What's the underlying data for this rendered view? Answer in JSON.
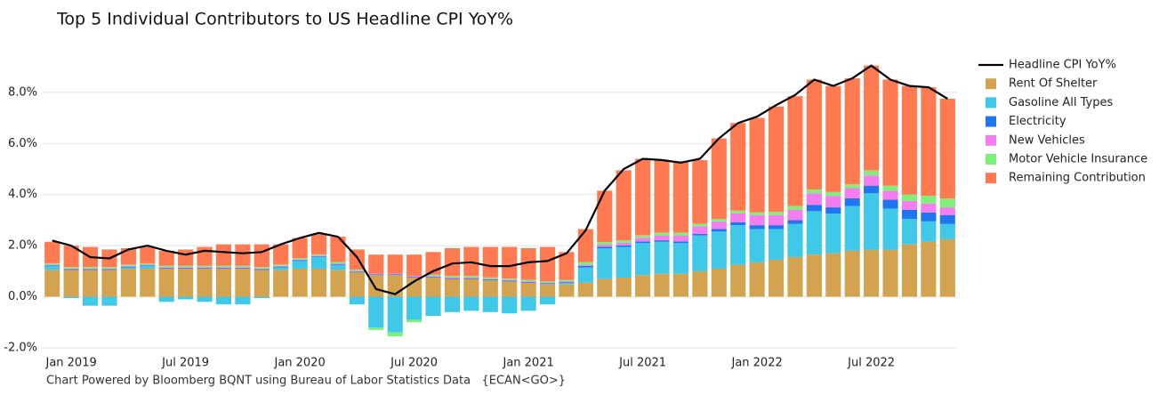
{
  "chart_data": {
    "type": "bar",
    "stacked": true,
    "title": "Top 5 Individual Contributors to US Headline CPI YoY%",
    "footnote": "Chart Powered by Bloomberg BQNT using Bureau of Labor Statistics Data   {ECAN<GO>}",
    "categories": [
      null,
      "Jan 2019",
      null,
      null,
      null,
      null,
      null,
      "Jul 2019",
      null,
      null,
      null,
      null,
      null,
      "Jan 2020",
      null,
      null,
      null,
      null,
      null,
      "Jul 2020",
      null,
      null,
      null,
      null,
      null,
      "Jan 2021",
      null,
      null,
      null,
      null,
      null,
      "Jul 2021",
      null,
      null,
      null,
      null,
      null,
      "Jan 2022",
      null,
      null,
      null,
      null,
      null,
      "Jul 2022",
      null,
      null,
      null,
      null
    ],
    "ylim": [
      -2.0,
      9.7
    ],
    "yticks": [
      {
        "value": -2,
        "label": "-2.0%"
      },
      {
        "value": 0,
        "label": "0.0%"
      },
      {
        "value": 2,
        "label": "2.0%"
      },
      {
        "value": 4,
        "label": "4.0%"
      },
      {
        "value": 6,
        "label": "6.0%"
      },
      {
        "value": 8,
        "label": "8.0%"
      }
    ],
    "grid": true,
    "legend": "right",
    "series": [
      {
        "name": "Headline CPI YoY%",
        "type": "line",
        "color": "#000000",
        "values": [
          2.2,
          2.0,
          1.55,
          1.5,
          1.85,
          2.0,
          1.8,
          1.65,
          1.8,
          1.75,
          1.7,
          1.75,
          2.05,
          2.3,
          2.5,
          2.35,
          1.55,
          0.3,
          0.1,
          0.6,
          1.0,
          1.3,
          1.35,
          1.2,
          1.2,
          1.35,
          1.4,
          1.7,
          2.6,
          4.15,
          5.0,
          5.4,
          5.35,
          5.25,
          5.4,
          6.2,
          6.8,
          7.05,
          7.5,
          7.9,
          8.5,
          8.25,
          8.55,
          9.05,
          8.5,
          8.25,
          8.2,
          7.75
        ]
      },
      {
        "name": "Rent Of Shelter",
        "color": "#d4a350",
        "values": [
          1.05,
          1.05,
          1.05,
          1.05,
          1.1,
          1.1,
          1.1,
          1.1,
          1.1,
          1.1,
          1.1,
          1.05,
          1.05,
          1.1,
          1.1,
          1.05,
          0.95,
          0.85,
          0.85,
          0.75,
          0.75,
          0.7,
          0.7,
          0.65,
          0.6,
          0.55,
          0.5,
          0.5,
          0.55,
          0.7,
          0.75,
          0.85,
          0.9,
          0.9,
          1.0,
          1.1,
          1.25,
          1.35,
          1.45,
          1.55,
          1.65,
          1.7,
          1.8,
          1.85,
          1.85,
          2.05,
          2.15,
          2.25
        ]
      },
      {
        "name": "Gasoline All Types",
        "color": "#40c8e8",
        "values": [
          0.15,
          -0.05,
          -0.35,
          -0.35,
          0.05,
          0.1,
          -0.2,
          -0.1,
          -0.2,
          -0.3,
          -0.3,
          -0.05,
          0.1,
          0.3,
          0.45,
          0.2,
          -0.3,
          -1.2,
          -1.4,
          -0.9,
          -0.75,
          -0.6,
          -0.55,
          -0.6,
          -0.65,
          -0.55,
          -0.3,
          0.05,
          0.6,
          1.2,
          1.2,
          1.25,
          1.25,
          1.2,
          1.4,
          1.45,
          1.55,
          1.3,
          1.2,
          1.3,
          1.7,
          1.55,
          1.75,
          2.2,
          1.6,
          1.0,
          0.8,
          0.6
        ]
      },
      {
        "name": "Electricity",
        "color": "#1f77f0",
        "values": [
          0.03,
          0.03,
          0.03,
          0.03,
          0.03,
          0.03,
          0.03,
          0.03,
          0.03,
          0.03,
          0.03,
          0.03,
          0.03,
          0.03,
          0.03,
          0.03,
          0.03,
          0.03,
          0.03,
          0.03,
          0.03,
          0.03,
          0.03,
          0.03,
          0.03,
          0.03,
          0.03,
          0.03,
          0.06,
          0.06,
          0.06,
          0.06,
          0.06,
          0.06,
          0.06,
          0.1,
          0.12,
          0.15,
          0.15,
          0.15,
          0.25,
          0.25,
          0.3,
          0.3,
          0.35,
          0.35,
          0.35,
          0.35
        ]
      },
      {
        "name": "New Vehicles",
        "color": "#f47ef0",
        "values": [
          0.03,
          0.03,
          0.03,
          0.03,
          0.03,
          0.03,
          0.03,
          0.03,
          0.03,
          0.03,
          0.03,
          0.03,
          0.03,
          0.03,
          0.03,
          0.03,
          0.03,
          0.03,
          0.03,
          0.03,
          0.03,
          0.03,
          0.03,
          0.03,
          0.03,
          0.03,
          0.03,
          0.03,
          0.05,
          0.08,
          0.1,
          0.15,
          0.2,
          0.25,
          0.3,
          0.3,
          0.35,
          0.4,
          0.4,
          0.4,
          0.45,
          0.45,
          0.4,
          0.4,
          0.35,
          0.35,
          0.35,
          0.3
        ]
      },
      {
        "name": "Motor Vehicle Insurance",
        "color": "#7df07a",
        "values": [
          0.05,
          0.05,
          0.05,
          0.05,
          0.05,
          0.05,
          0.05,
          0.05,
          0.05,
          0.05,
          0.05,
          0.05,
          0.05,
          0.05,
          0.05,
          0.05,
          0.05,
          -0.1,
          -0.15,
          -0.1,
          0.05,
          0.05,
          0.05,
          0.05,
          0.05,
          0.05,
          0.05,
          0.05,
          0.1,
          0.1,
          0.1,
          0.1,
          0.1,
          0.1,
          0.1,
          0.1,
          0.1,
          0.1,
          0.12,
          0.15,
          0.15,
          0.15,
          0.15,
          0.2,
          0.2,
          0.25,
          0.3,
          0.35
        ]
      },
      {
        "name": "Remaining Contribution",
        "color": "#ff7a50",
        "values": [
          0.84,
          0.84,
          0.79,
          0.69,
          0.64,
          0.64,
          0.59,
          0.64,
          0.74,
          0.84,
          0.84,
          0.89,
          0.79,
          0.79,
          0.79,
          0.99,
          0.79,
          0.74,
          0.74,
          0.84,
          0.89,
          1.09,
          1.14,
          1.19,
          1.24,
          1.24,
          1.34,
          1.09,
          1.29,
          2.01,
          2.74,
          2.99,
          2.84,
          2.79,
          2.49,
          3.15,
          3.43,
          3.7,
          4.13,
          4.3,
          4.3,
          4.15,
          4.15,
          4.1,
          4.15,
          4.25,
          4.25,
          3.9
        ]
      }
    ]
  }
}
